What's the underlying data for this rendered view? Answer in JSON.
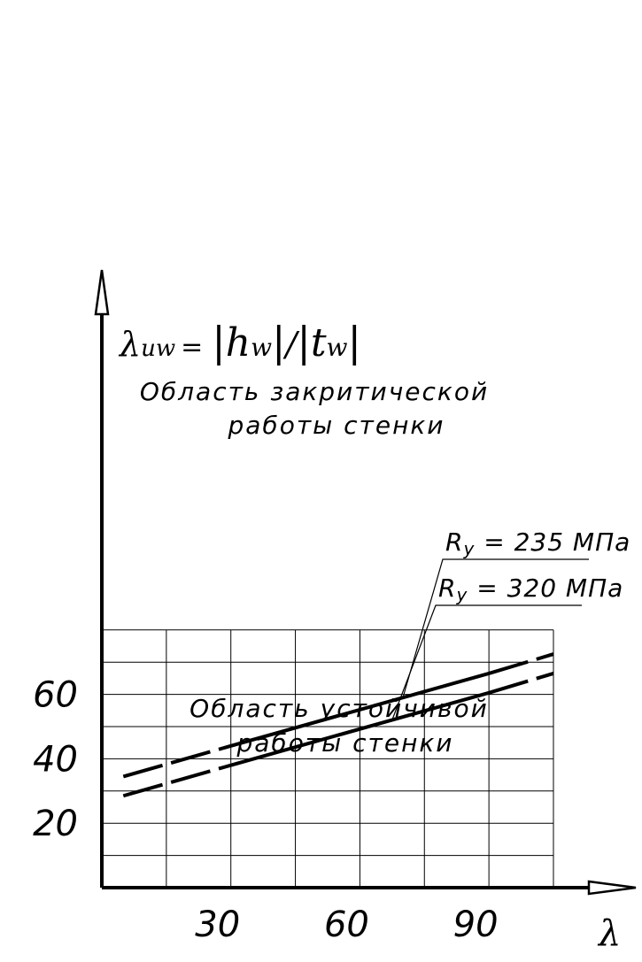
{
  "chart_data": {
    "type": "line",
    "title": "",
    "ylabel_parts": {
      "lambda": "λ",
      "sub": "uw",
      "eq": "=",
      "h": "h",
      "h_sub": "w",
      "slash": "/",
      "t": "t",
      "t_sub": "w"
    },
    "xlabel": "λ",
    "xlim": [
      0,
      105
    ],
    "ylim": [
      0,
      80
    ],
    "grid": true,
    "x_ticks": [
      {
        "value": 30,
        "label": "30"
      },
      {
        "value": 60,
        "label": "60"
      },
      {
        "value": 90,
        "label": "90"
      }
    ],
    "y_ticks": [
      {
        "value": 20,
        "label": "20"
      },
      {
        "value": 40,
        "label": "40"
      },
      {
        "value": 60,
        "label": "60"
      }
    ],
    "region_upper": [
      "Область закритической",
      "работы стенки"
    ],
    "region_lower": [
      "Область устойчивой",
      "работы стенки"
    ],
    "series": [
      {
        "name": "Ry = 235 МПа",
        "label_prefix": "R",
        "label_sub": "y",
        "label_rest": " = 235 МПа",
        "x": [
          5,
          30,
          90,
          105
        ],
        "y": [
          34.5,
          44,
          66.5,
          72.5
        ]
      },
      {
        "name": "Ry = 320 МПа",
        "label_prefix": "R",
        "label_sub": "y",
        "label_rest": " = 320 МПа",
        "x": [
          5,
          30,
          90,
          105
        ],
        "y": [
          28.5,
          38,
          60.5,
          66.5
        ]
      }
    ]
  }
}
